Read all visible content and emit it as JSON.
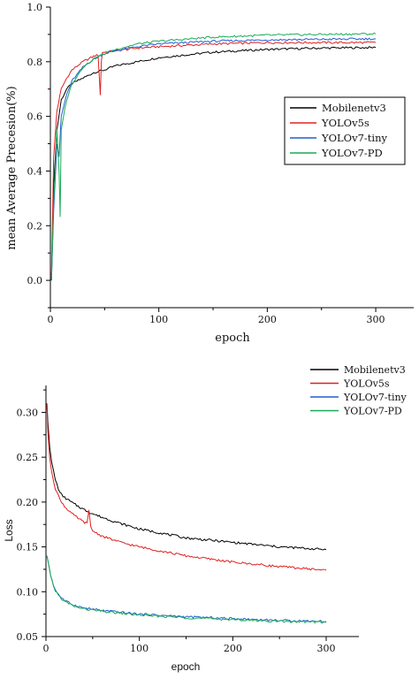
{
  "chart_data": [
    {
      "type": "line",
      "xlabel": "epoch",
      "ylabel": "mean Average Precesion(%)",
      "xlim": [
        0,
        335
      ],
      "ylim": [
        -0.1,
        1.0
      ],
      "xticks": [
        0,
        100,
        200,
        300
      ],
      "yticks": [
        0.0,
        0.2,
        0.4,
        0.6,
        0.8,
        1.0
      ],
      "xtick_labels": [
        "0",
        "100",
        "200",
        "300"
      ],
      "ytick_labels": [
        "0.0",
        "0.2",
        "0.4",
        "0.6",
        "0.8",
        "1.0"
      ],
      "legend_position": "right",
      "series": [
        {
          "name": "Mobilenetv3",
          "color": "#000000",
          "x": [
            1,
            3,
            6,
            10,
            15,
            20,
            30,
            40,
            50,
            60,
            80,
            100,
            150,
            200,
            250,
            300
          ],
          "y": [
            0.0,
            0.35,
            0.55,
            0.66,
            0.7,
            0.72,
            0.74,
            0.76,
            0.77,
            0.785,
            0.8,
            0.815,
            0.835,
            0.845,
            0.85,
            0.852
          ]
        },
        {
          "name": "YOLOv5s",
          "color": "#e02020",
          "x": [
            1,
            3,
            6,
            10,
            15,
            20,
            30,
            40,
            44,
            46,
            47,
            48,
            50,
            60,
            80,
            100,
            150,
            200,
            250,
            300
          ],
          "y": [
            0.02,
            0.45,
            0.62,
            0.7,
            0.74,
            0.77,
            0.8,
            0.82,
            0.825,
            0.68,
            0.8,
            0.835,
            0.835,
            0.84,
            0.85,
            0.855,
            0.865,
            0.87,
            0.87,
            0.87
          ]
        },
        {
          "name": "YOLOv7-tiny",
          "color": "#1f5fd6",
          "x": [
            1,
            3,
            6,
            8,
            10,
            15,
            20,
            30,
            40,
            50,
            60,
            80,
            100,
            150,
            200,
            250,
            300
          ],
          "y": [
            0.0,
            0.25,
            0.5,
            0.45,
            0.6,
            0.68,
            0.73,
            0.78,
            0.81,
            0.83,
            0.84,
            0.855,
            0.865,
            0.875,
            0.88,
            0.882,
            0.884
          ]
        },
        {
          "name": "YOLOv7-PD",
          "color": "#1aaa55",
          "x": [
            1,
            3,
            6,
            8,
            9,
            10,
            12,
            15,
            20,
            30,
            40,
            50,
            60,
            80,
            100,
            150,
            200,
            250,
            300
          ],
          "y": [
            0.0,
            0.28,
            0.55,
            0.4,
            0.23,
            0.55,
            0.6,
            0.66,
            0.72,
            0.78,
            0.81,
            0.83,
            0.845,
            0.865,
            0.875,
            0.89,
            0.897,
            0.9,
            0.902
          ]
        }
      ]
    },
    {
      "type": "line",
      "xlabel": "epoch",
      "ylabel": "Loss",
      "xlim": [
        0,
        335
      ],
      "ylim": [
        0.05,
        0.33
      ],
      "xticks": [
        0,
        100,
        200,
        300
      ],
      "yticks": [
        0.05,
        0.1,
        0.15,
        0.2,
        0.25,
        0.3
      ],
      "xtick_labels": [
        "0",
        "100",
        "200",
        "300"
      ],
      "ytick_labels": [
        "0.05",
        "0.10",
        "0.15",
        "0.20",
        "0.25",
        "0.30"
      ],
      "legend_position": "top-right",
      "series": [
        {
          "name": "Mobilenetv3",
          "color": "#000000",
          "x": [
            1,
            2,
            4,
            6,
            8,
            10,
            15,
            20,
            30,
            40,
            50,
            60,
            80,
            100,
            150,
            200,
            250,
            300
          ],
          "y": [
            0.31,
            0.29,
            0.26,
            0.245,
            0.235,
            0.225,
            0.21,
            0.205,
            0.198,
            0.192,
            0.187,
            0.183,
            0.176,
            0.17,
            0.16,
            0.155,
            0.15,
            0.147
          ]
        },
        {
          "name": "YOLOv5s",
          "color": "#e02020",
          "x": [
            1,
            2,
            4,
            6,
            8,
            10,
            15,
            20,
            30,
            40,
            44,
            46,
            48,
            50,
            60,
            80,
            100,
            150,
            200,
            250,
            300
          ],
          "y": [
            0.31,
            0.28,
            0.25,
            0.235,
            0.225,
            0.215,
            0.203,
            0.195,
            0.185,
            0.178,
            0.176,
            0.19,
            0.172,
            0.168,
            0.162,
            0.155,
            0.15,
            0.14,
            0.133,
            0.128,
            0.124
          ]
        },
        {
          "name": "YOLOv7-tiny",
          "color": "#1f5fd6",
          "x": [
            1,
            3,
            5,
            8,
            10,
            15,
            20,
            30,
            40,
            60,
            80,
            100,
            150,
            200,
            250,
            300
          ],
          "y": [
            0.14,
            0.13,
            0.118,
            0.108,
            0.102,
            0.095,
            0.09,
            0.085,
            0.082,
            0.079,
            0.077,
            0.075,
            0.072,
            0.07,
            0.068,
            0.067
          ]
        },
        {
          "name": "YOLOv7-PD",
          "color": "#1aaa55",
          "x": [
            1,
            3,
            5,
            8,
            10,
            15,
            20,
            30,
            40,
            60,
            80,
            100,
            150,
            200,
            250,
            300
          ],
          "y": [
            0.14,
            0.13,
            0.117,
            0.107,
            0.101,
            0.094,
            0.089,
            0.084,
            0.081,
            0.078,
            0.076,
            0.074,
            0.071,
            0.069,
            0.067,
            0.066
          ]
        }
      ]
    }
  ]
}
